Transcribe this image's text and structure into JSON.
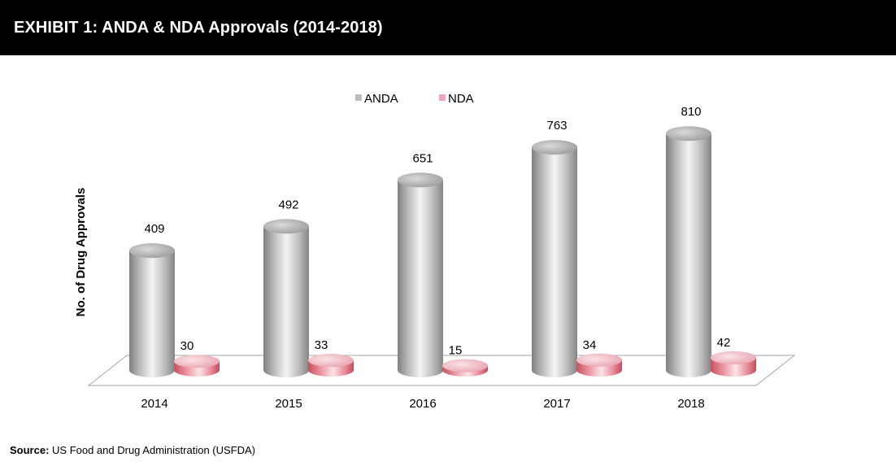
{
  "header": {
    "title": "EXHIBIT 1: ANDA & NDA Approvals (2014-2018)"
  },
  "source": {
    "label": "Source:",
    "text": " US Food and Drug Administration (USFDA)"
  },
  "colors": {
    "header_bg": "#000000",
    "anda": "#bdbdbd",
    "nda": "#f2a9b4"
  },
  "chart_data": {
    "type": "bar",
    "style": "3d-cylinder",
    "categories": [
      "2014",
      "2015",
      "2016",
      "2017",
      "2018"
    ],
    "series": [
      {
        "name": "ANDA",
        "values": [
          409,
          492,
          651,
          763,
          810
        ]
      },
      {
        "name": "NDA",
        "values": [
          30,
          33,
          15,
          34,
          42
        ]
      }
    ],
    "title": "",
    "xlabel": "",
    "ylabel": "No. of Drug Approvals",
    "ylim": [
      0,
      1000
    ],
    "grid": false,
    "legend_position": "top-center"
  }
}
